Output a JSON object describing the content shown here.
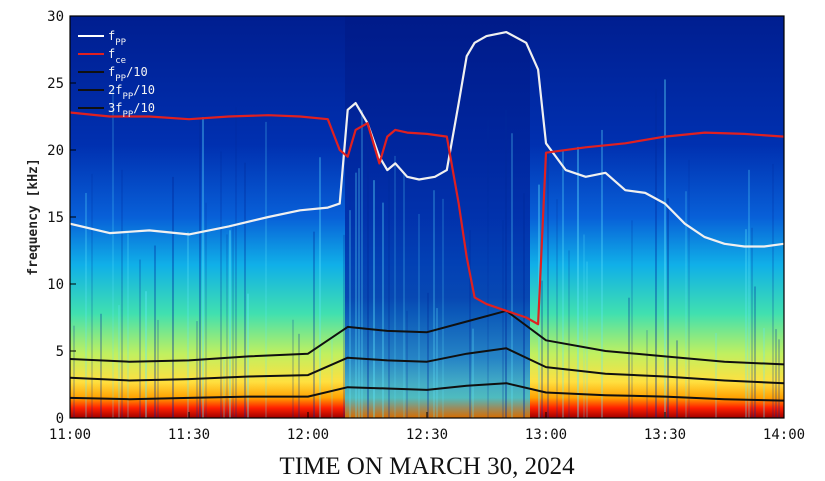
{
  "chart_data": {
    "type": "line",
    "background": "spectrogram",
    "xlabel": "TIME ON MARCH 30, 2024",
    "ylabel": "frequency [kHz]",
    "x_ticks": [
      "11:00",
      "11:30",
      "12:00",
      "12:30",
      "13:00",
      "13:30",
      "14:00"
    ],
    "y_ticks": [
      0,
      5,
      10,
      15,
      20,
      25,
      30
    ],
    "xlim": [
      "11:00",
      "14:00"
    ],
    "ylim": [
      0,
      30
    ],
    "grid": false,
    "legend_position": "top-left",
    "legend": [
      {
        "base": "f",
        "sub": "PP",
        "suffix": "",
        "color": "#ffffff"
      },
      {
        "base": "f",
        "sub": "ce",
        "suffix": "",
        "color": "#e02020"
      },
      {
        "base": "f",
        "sub": "PP",
        "suffix": "/10",
        "color": "#101010"
      },
      {
        "base": "2f",
        "sub": "PP",
        "suffix": "/10",
        "color": "#101010"
      },
      {
        "base": "3f",
        "sub": "PP",
        "suffix": "/10",
        "color": "#101010"
      }
    ],
    "series": [
      {
        "name": "fPP",
        "color": "#f0f0f0",
        "x": [
          "11:00",
          "11:10",
          "11:20",
          "11:30",
          "11:40",
          "11:50",
          "11:58",
          "12:05",
          "12:08",
          "12:10",
          "12:12",
          "12:15",
          "12:18",
          "12:20",
          "12:22",
          "12:25",
          "12:28",
          "12:32",
          "12:35",
          "12:38",
          "12:40",
          "12:42",
          "12:45",
          "12:50",
          "12:55",
          "12:58",
          "13:00",
          "13:05",
          "13:10",
          "13:15",
          "13:20",
          "13:25",
          "13:30",
          "13:35",
          "13:40",
          "13:45",
          "13:50",
          "13:55",
          "14:00"
        ],
        "y": [
          14.5,
          13.8,
          14.0,
          13.7,
          14.3,
          15.0,
          15.5,
          15.7,
          16.0,
          23.0,
          23.5,
          22.0,
          19.5,
          18.5,
          19.0,
          18.0,
          17.8,
          18.0,
          18.5,
          23.5,
          27.0,
          28.0,
          28.5,
          28.8,
          28.0,
          26.0,
          20.5,
          18.5,
          18.0,
          18.3,
          17.0,
          16.8,
          16.0,
          14.5,
          13.5,
          13.0,
          12.8,
          12.8,
          13.0
        ]
      },
      {
        "name": "fce",
        "color": "#e02020",
        "x": [
          "11:00",
          "11:10",
          "11:20",
          "11:30",
          "11:40",
          "11:50",
          "11:58",
          "12:05",
          "12:08",
          "12:10",
          "12:12",
          "12:15",
          "12:18",
          "12:20",
          "12:22",
          "12:25",
          "12:30",
          "12:35",
          "12:38",
          "12:40",
          "12:42",
          "12:45",
          "12:50",
          "12:55",
          "12:58",
          "13:00",
          "13:10",
          "13:20",
          "13:30",
          "13:40",
          "13:50",
          "14:00"
        ],
        "y": [
          22.8,
          22.5,
          22.5,
          22.3,
          22.5,
          22.6,
          22.5,
          22.3,
          20.0,
          19.5,
          21.5,
          22.0,
          19.0,
          21.0,
          21.5,
          21.3,
          21.2,
          21.0,
          16.0,
          12.0,
          9.0,
          8.5,
          8.0,
          7.5,
          7.0,
          19.8,
          20.2,
          20.5,
          21.0,
          21.3,
          21.2,
          21.0
        ]
      },
      {
        "name": "fPP/10",
        "color": "#101010",
        "x": [
          "11:00",
          "11:15",
          "11:30",
          "11:45",
          "12:00",
          "12:10",
          "12:20",
          "12:30",
          "12:40",
          "12:50",
          "13:00",
          "13:15",
          "13:30",
          "13:45",
          "14:00"
        ],
        "y": [
          4.4,
          4.2,
          4.3,
          4.6,
          4.8,
          6.8,
          6.5,
          6.4,
          7.2,
          8.0,
          5.8,
          5.0,
          4.6,
          4.2,
          4.0
        ]
      },
      {
        "name": "2fPP/10",
        "color": "#101010",
        "x": [
          "11:00",
          "11:15",
          "11:30",
          "11:45",
          "12:00",
          "12:10",
          "12:20",
          "12:30",
          "12:40",
          "12:50",
          "13:00",
          "13:15",
          "13:30",
          "13:45",
          "14:00"
        ],
        "y": [
          3.0,
          2.8,
          2.9,
          3.1,
          3.2,
          4.5,
          4.3,
          4.2,
          4.8,
          5.2,
          3.8,
          3.3,
          3.1,
          2.8,
          2.6
        ]
      },
      {
        "name": "3fPP/10",
        "color": "#101010",
        "x": [
          "11:00",
          "11:15",
          "11:30",
          "11:45",
          "12:00",
          "12:10",
          "12:20",
          "12:30",
          "12:40",
          "12:50",
          "13:00",
          "13:15",
          "13:30",
          "13:45",
          "14:00"
        ],
        "y": [
          1.5,
          1.4,
          1.5,
          1.6,
          1.6,
          2.3,
          2.2,
          2.1,
          2.4,
          2.6,
          1.9,
          1.7,
          1.6,
          1.4,
          1.3
        ]
      }
    ]
  }
}
